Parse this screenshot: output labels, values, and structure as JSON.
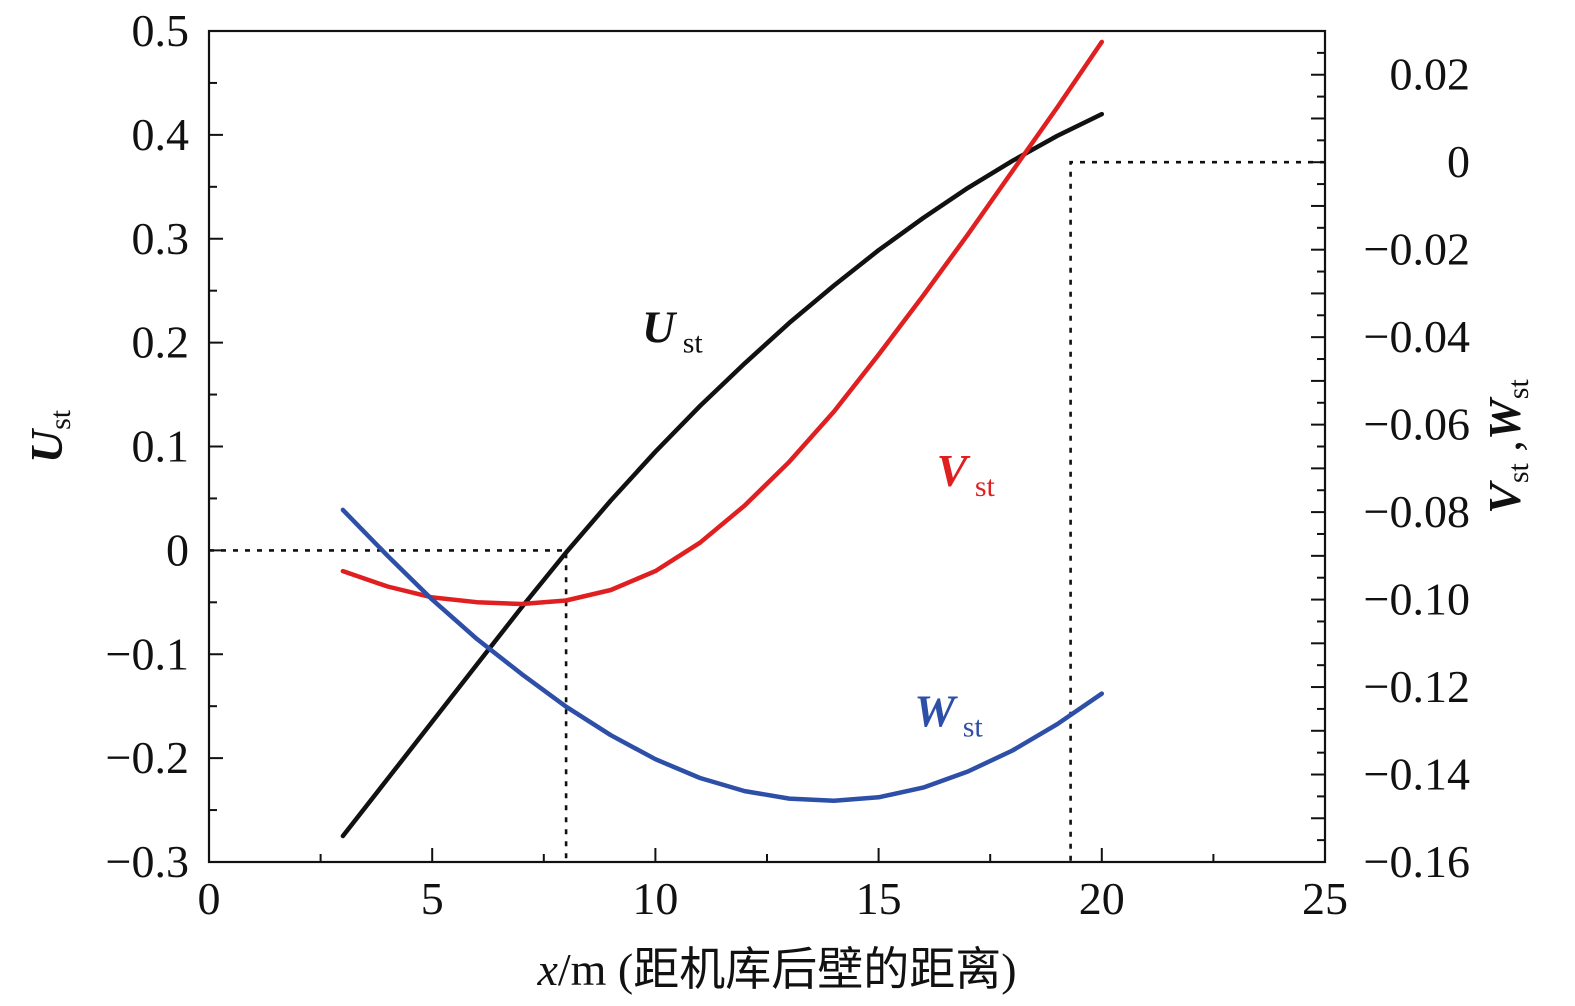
{
  "chart_data": {
    "type": "line",
    "xlabel": {
      "var": "x",
      "rest": "/m (距机库后壁的距离)"
    },
    "ylabel_left": {
      "main": "U",
      "sub": "st"
    },
    "ylabel_right": {
      "main1": "V",
      "sub1": "st",
      "sep": " ,",
      "main2": "W",
      "sub2": "st"
    },
    "xlim": [
      0,
      25
    ],
    "ylim_left": [
      -0.3,
      0.5
    ],
    "ylim_right": [
      -0.16,
      0.03
    ],
    "x_ticks": [
      0,
      5,
      10,
      15,
      20,
      25
    ],
    "x_tick_labels": [
      "0",
      "5",
      "10",
      "15",
      "20",
      "25"
    ],
    "y_left_ticks": [
      -0.3,
      -0.2,
      -0.1,
      0,
      0.1,
      0.2,
      0.3,
      0.4,
      0.5
    ],
    "y_left_tick_labels": [
      "−0.3",
      "−0.2",
      "−0.1",
      "0",
      "0.1",
      "0.2",
      "0.3",
      "0.4",
      "0.5"
    ],
    "y_right_ticks": [
      -0.16,
      -0.14,
      -0.12,
      -0.1,
      -0.08,
      -0.06,
      -0.04,
      -0.02,
      0,
      0.02
    ],
    "y_right_tick_labels": [
      "−0.16",
      "−0.14",
      "−0.12",
      "−0.10",
      "−0.08",
      "−0.06",
      "−0.04",
      "−0.02",
      "0",
      "0.02"
    ],
    "grid": false,
    "series": [
      {
        "name": "U",
        "sub": "st",
        "axis": "left",
        "color": "#111111",
        "label_at": [
          9.7,
          0.2
        ],
        "x": [
          3,
          4,
          5,
          6,
          7,
          8,
          9,
          10,
          11,
          12,
          13,
          14,
          15,
          16,
          17,
          18,
          19,
          20
        ],
        "y": [
          -0.275,
          -0.22,
          -0.165,
          -0.11,
          -0.055,
          -0.002,
          0.048,
          0.095,
          0.139,
          0.18,
          0.219,
          0.255,
          0.289,
          0.32,
          0.349,
          0.375,
          0.399,
          0.42
        ]
      },
      {
        "name": "V",
        "sub": "st",
        "axis": "right",
        "color": "#e02020",
        "label_at": [
          16.3,
          -0.074
        ],
        "x": [
          3,
          4,
          5,
          6,
          7,
          8,
          9,
          10,
          11,
          12,
          13,
          14,
          15,
          16,
          17,
          18,
          19,
          20
        ],
        "y": [
          -0.0935,
          -0.097,
          -0.0995,
          -0.1006,
          -0.101,
          -0.1002,
          -0.0978,
          -0.0935,
          -0.087,
          -0.0785,
          -0.0685,
          -0.057,
          -0.044,
          -0.0305,
          -0.0165,
          -0.002,
          0.0125,
          0.0275
        ]
      },
      {
        "name": "W",
        "sub": "st",
        "axis": "right",
        "color": "#2e4fa8",
        "label_at": [
          15.8,
          -0.129
        ],
        "x": [
          3,
          4,
          5,
          6,
          7,
          8,
          9,
          10,
          11,
          12,
          13,
          14,
          15,
          16,
          17,
          18,
          19,
          20
        ],
        "y": [
          -0.0795,
          -0.09,
          -0.1,
          -0.109,
          -0.117,
          -0.1245,
          -0.131,
          -0.1365,
          -0.1408,
          -0.1438,
          -0.1455,
          -0.146,
          -0.1452,
          -0.143,
          -0.1393,
          -0.1345,
          -0.1285,
          -0.1215
        ]
      }
    ],
    "reference_lines": [
      {
        "axis": "left",
        "points": [
          [
            0,
            0
          ],
          [
            8,
            0
          ],
          [
            8,
            -0.3
          ]
        ]
      },
      {
        "axis": "right",
        "points": [
          [
            25,
            0
          ],
          [
            19.3,
            0
          ],
          [
            19.3,
            -0.16
          ]
        ]
      }
    ]
  }
}
